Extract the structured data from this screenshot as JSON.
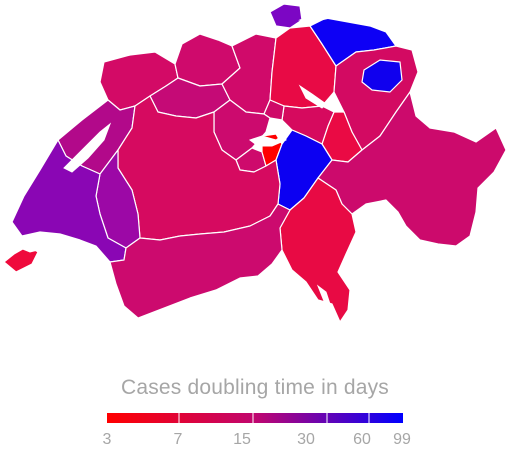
{
  "legend": {
    "title": "Cases doubling time in days",
    "ticks": [
      "3",
      "7",
      "15",
      "30",
      "60",
      "99"
    ],
    "color_low": "#ff0000",
    "color_high": "#0000ff"
  },
  "map": {
    "region": "Switzerland",
    "lake_color": "#ffffff",
    "canton_colors": {
      "geneva": "#ef0a3c",
      "vaud": "#8a06b4",
      "valais": "#cc0a6e",
      "fribourg": "#9c08a6",
      "neuchatel": "#b2098a",
      "jura": "#d30a66",
      "bern": "#d60a60",
      "solothurn": "#c50a76",
      "basel": "#cf0a6c",
      "aargau": "#d00a6a",
      "zurich": "#e80a45",
      "schaffhausen": "#7c06c4",
      "thurgau": "#0d00f5",
      "st_gallen": "#d30a62",
      "appenzell": "#1000ee",
      "glarus": "#ea0a44",
      "graubuenden": "#cc0a6c",
      "ticino": "#e80a44",
      "uri": "#0c00f2",
      "schwyz": "#d60a5e",
      "zug": "#cf0a68",
      "lucerne": "#cc0a6e",
      "nidwalden": "#ff0000",
      "obwalden": "#ce0a6c"
    }
  }
}
